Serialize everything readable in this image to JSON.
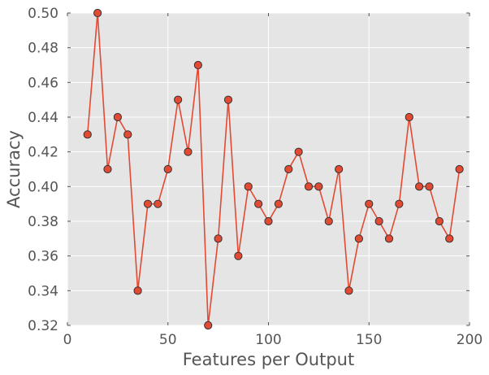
{
  "chart_data": {
    "type": "line",
    "title": "",
    "xlabel": "Features per Output",
    "ylabel": "Accuracy",
    "xlim": [
      0,
      200
    ],
    "ylim": [
      0.32,
      0.5
    ],
    "xticks": [
      0,
      50,
      100,
      150,
      200
    ],
    "yticks": [
      0.32,
      0.34,
      0.36,
      0.38,
      0.4,
      0.42,
      0.44,
      0.46,
      0.48,
      0.5
    ],
    "xtick_labels": [
      "0",
      "50",
      "100",
      "150",
      "200"
    ],
    "ytick_labels": [
      "0.32",
      "0.34",
      "0.36",
      "0.38",
      "0.40",
      "0.42",
      "0.44",
      "0.46",
      "0.48",
      "0.50"
    ],
    "grid": true,
    "legend": "none",
    "series": [
      {
        "color": "#e24a33",
        "marker": "circle",
        "x": [
          10,
          15,
          20,
          25,
          30,
          35,
          40,
          45,
          50,
          55,
          60,
          65,
          70,
          75,
          80,
          85,
          90,
          95,
          100,
          105,
          110,
          115,
          120,
          125,
          130,
          135,
          140,
          145,
          150,
          155,
          160,
          165,
          170,
          175,
          180,
          185,
          190,
          195
        ],
        "y": [
          0.43,
          0.5,
          0.41,
          0.44,
          0.43,
          0.34,
          0.39,
          0.39,
          0.41,
          0.45,
          0.42,
          0.47,
          0.32,
          0.37,
          0.45,
          0.36,
          0.4,
          0.39,
          0.38,
          0.39,
          0.41,
          0.42,
          0.4,
          0.4,
          0.38,
          0.41,
          0.34,
          0.37,
          0.39,
          0.38,
          0.37,
          0.39,
          0.44,
          0.4,
          0.4,
          0.38,
          0.37,
          0.41
        ]
      }
    ],
    "colors": {
      "plot_background": "#e5e5e5",
      "grid": "#ffffff",
      "line": "#e24a33",
      "marker_edge": "#333333"
    }
  }
}
